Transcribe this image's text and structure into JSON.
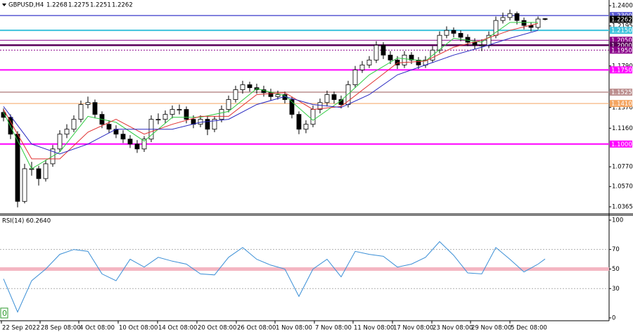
{
  "chart_data": [
    {
      "type": "candlestick",
      "title": "GBPUSD,H4",
      "x": [
        0,
        1,
        2,
        3,
        4,
        5,
        6,
        7,
        8,
        9,
        10,
        11,
        12,
        13,
        14,
        15,
        16,
        17,
        18,
        19,
        20,
        21,
        22,
        23,
        24,
        25,
        26,
        27,
        28,
        29,
        30,
        31,
        32,
        33,
        34,
        35,
        36,
        37,
        38,
        39,
        40,
        41,
        42,
        43,
        44,
        45,
        46,
        47,
        48,
        49,
        50,
        51,
        52,
        53,
        54,
        55,
        56,
        57,
        58,
        59,
        60,
        61,
        62,
        63,
        64,
        65,
        66,
        67,
        68,
        69,
        70,
        71,
        72,
        73,
        74,
        75,
        76,
        77
      ],
      "open": [
        1.132,
        1.127,
        1.11,
        1.042,
        1.075,
        1.075,
        1.065,
        1.08,
        1.095,
        1.11,
        1.115,
        1.125,
        1.14,
        1.142,
        1.13,
        1.12,
        1.115,
        1.11,
        1.105,
        1.1,
        1.095,
        1.105,
        1.125,
        1.125,
        1.13,
        1.135,
        1.135,
        1.125,
        1.12,
        1.125,
        1.115,
        1.125,
        1.135,
        1.145,
        1.155,
        1.16,
        1.157,
        1.155,
        1.152,
        1.148,
        1.15,
        1.145,
        1.13,
        1.115,
        1.12,
        1.135,
        1.142,
        1.15,
        1.145,
        1.14,
        1.16,
        1.175,
        1.18,
        1.185,
        1.2,
        1.19,
        1.185,
        1.18,
        1.19,
        1.185,
        1.18,
        1.185,
        1.195,
        1.21,
        1.215,
        1.212,
        1.208,
        1.203,
        1.2,
        1.2,
        1.21,
        1.225,
        1.228,
        1.232,
        1.225,
        1.22,
        1.218,
        1.2268
      ],
      "high": [
        1.136,
        1.13,
        1.113,
        1.08,
        1.082,
        1.078,
        1.084,
        1.099,
        1.114,
        1.12,
        1.129,
        1.144,
        1.148,
        1.145,
        1.133,
        1.124,
        1.119,
        1.114,
        1.109,
        1.104,
        1.108,
        1.129,
        1.131,
        1.134,
        1.139,
        1.14,
        1.138,
        1.129,
        1.129,
        1.128,
        1.128,
        1.139,
        1.149,
        1.159,
        1.164,
        1.163,
        1.161,
        1.159,
        1.156,
        1.154,
        1.153,
        1.148,
        1.133,
        1.124,
        1.139,
        1.146,
        1.154,
        1.153,
        1.149,
        1.164,
        1.179,
        1.184,
        1.189,
        1.204,
        1.203,
        1.194,
        1.189,
        1.194,
        1.193,
        1.188,
        1.189,
        1.199,
        1.214,
        1.219,
        1.218,
        1.215,
        1.211,
        1.207,
        1.206,
        1.214,
        1.229,
        1.233,
        1.236,
        1.234,
        1.228,
        1.223,
        1.229,
        1.2275
      ],
      "low": [
        1.123,
        1.105,
        1.036,
        1.04,
        1.068,
        1.058,
        1.062,
        1.077,
        1.092,
        1.106,
        1.112,
        1.122,
        1.136,
        1.126,
        1.116,
        1.111,
        1.106,
        1.101,
        1.096,
        1.091,
        1.092,
        1.102,
        1.12,
        1.121,
        1.126,
        1.13,
        1.121,
        1.116,
        1.117,
        1.109,
        1.112,
        1.122,
        1.132,
        1.142,
        1.151,
        1.153,
        1.151,
        1.148,
        1.144,
        1.145,
        1.141,
        1.126,
        1.11,
        1.111,
        1.117,
        1.131,
        1.138,
        1.141,
        1.136,
        1.137,
        1.157,
        1.172,
        1.177,
        1.182,
        1.186,
        1.181,
        1.176,
        1.177,
        1.181,
        1.176,
        1.177,
        1.182,
        1.192,
        1.207,
        1.208,
        1.204,
        1.199,
        1.196,
        1.194,
        1.197,
        1.207,
        1.222,
        1.225,
        1.221,
        1.216,
        1.214,
        1.216,
        1.2251
      ],
      "close": [
        1.127,
        1.11,
        1.042,
        1.075,
        1.075,
        1.065,
        1.08,
        1.095,
        1.11,
        1.115,
        1.125,
        1.14,
        1.142,
        1.13,
        1.12,
        1.115,
        1.11,
        1.105,
        1.1,
        1.095,
        1.105,
        1.125,
        1.125,
        1.13,
        1.135,
        1.135,
        1.125,
        1.12,
        1.125,
        1.115,
        1.125,
        1.135,
        1.145,
        1.155,
        1.16,
        1.157,
        1.155,
        1.152,
        1.148,
        1.15,
        1.145,
        1.13,
        1.115,
        1.12,
        1.135,
        1.142,
        1.15,
        1.145,
        1.14,
        1.16,
        1.175,
        1.18,
        1.185,
        1.2,
        1.19,
        1.185,
        1.18,
        1.19,
        1.185,
        1.18,
        1.185,
        1.195,
        1.21,
        1.215,
        1.212,
        1.208,
        1.203,
        1.2,
        1.2,
        1.21,
        1.225,
        1.228,
        1.232,
        1.225,
        1.22,
        1.218,
        1.2265,
        1.2262
      ],
      "bull_color": "#ffffff",
      "bear_color": "#000000",
      "series": [
        {
          "color": "#2ecc40",
          "x": [
            0,
            4,
            8,
            12,
            16,
            20,
            24,
            28,
            32,
            36,
            40,
            44,
            48,
            52,
            56,
            60,
            64,
            68,
            72,
            76
          ],
          "values": [
            1.132,
            1.075,
            1.092,
            1.128,
            1.122,
            1.103,
            1.127,
            1.127,
            1.133,
            1.156,
            1.149,
            1.124,
            1.144,
            1.17,
            1.187,
            1.184,
            1.207,
            1.203,
            1.223,
            1.223
          ]
        },
        {
          "color": "#e03030",
          "x": [
            0,
            4,
            8,
            12,
            16,
            20,
            24,
            28,
            32,
            36,
            40,
            44,
            48,
            52,
            56,
            60,
            64,
            68,
            72,
            76
          ],
          "values": [
            1.135,
            1.085,
            1.085,
            1.112,
            1.125,
            1.11,
            1.12,
            1.128,
            1.128,
            1.15,
            1.152,
            1.135,
            1.138,
            1.16,
            1.182,
            1.184,
            1.198,
            1.205,
            1.215,
            1.222
          ]
        },
        {
          "color": "#2828c0",
          "x": [
            0,
            4,
            8,
            12,
            16,
            20,
            24,
            28,
            32,
            36,
            40,
            44,
            48,
            52,
            56,
            60,
            64,
            68,
            72,
            76
          ],
          "values": [
            1.138,
            1.1,
            1.09,
            1.1,
            1.115,
            1.115,
            1.115,
            1.122,
            1.125,
            1.14,
            1.148,
            1.14,
            1.137,
            1.15,
            1.17,
            1.18,
            1.19,
            1.198,
            1.207,
            1.215
          ]
        }
      ],
      "levels": [
        {
          "value": 1.23,
          "label": "1.2300",
          "color": "#5a5ad2",
          "style": "solid",
          "width": 1.5
        },
        {
          "value": 1.215,
          "label": "1.2150",
          "color": "#3ec3dc",
          "style": "solid",
          "width": 2
        },
        {
          "value": 1.205,
          "label": "1.2050",
          "color": "#8b008b",
          "style": "solid",
          "width": 1
        },
        {
          "value": 1.2,
          "label": "1.2000",
          "color": "#5a005a",
          "style": "solid",
          "width": 2.5
        },
        {
          "value": 1.195,
          "label": "1.1950",
          "color": "#8b008b",
          "style": "dotted",
          "width": 1
        },
        {
          "value": 1.175,
          "label": "1.1750",
          "color": "#ff00ff",
          "style": "solid",
          "width": 2
        },
        {
          "value": 1.1525,
          "label": "1.1525",
          "color": "#bc8f8f",
          "style": "solid",
          "width": 1.5
        },
        {
          "value": 1.141,
          "label": "1.1410",
          "color": "#f4a460",
          "style": "solid",
          "width": 1
        },
        {
          "value": 1.1,
          "label": "1.1000",
          "color": "#ff00ff",
          "style": "solid",
          "width": 2
        }
      ],
      "xlim": [
        -0.5,
        86.1
      ],
      "ylim": [
        1.0301,
        1.2443
      ],
      "yticks": [
        {
          "value": 1.24,
          "label": "1.2400"
        },
        {
          "value": 1.2195,
          "label": "1.2195"
        },
        {
          "value": 1.179,
          "label": "1.1790"
        },
        {
          "value": 1.137,
          "label": "1.1370"
        },
        {
          "value": 1.116,
          "label": "1.1160"
        },
        {
          "value": 1.077,
          "label": "1.0770"
        },
        {
          "value": 1.057,
          "label": "1.0570"
        },
        {
          "value": 1.0365,
          "label": "1.0365"
        }
      ]
    },
    {
      "type": "line",
      "title": "RSI(14) 60.2640",
      "color": "#3b8fd6",
      "x": [
        0,
        2,
        4,
        6,
        8,
        10,
        12,
        14,
        16,
        18,
        20,
        22,
        24,
        26,
        28,
        30,
        32,
        34,
        36,
        38,
        40,
        42,
        44,
        46,
        48,
        50,
        52,
        54,
        56,
        58,
        60,
        62,
        64,
        66,
        68,
        70,
        72,
        74,
        76,
        77
      ],
      "values": [
        40,
        6,
        38,
        50,
        65,
        70,
        68,
        45,
        38,
        60,
        52,
        62,
        58,
        55,
        45,
        44,
        62,
        72,
        60,
        54,
        50,
        22,
        50,
        60,
        42,
        68,
        65,
        63,
        52,
        55,
        62,
        78,
        64,
        46,
        45,
        72,
        60,
        47,
        55,
        60.264
      ],
      "levels": [
        {
          "value": 70,
          "color": "#b0b0b0",
          "style": "dotted",
          "width": 1
        },
        {
          "value": 50,
          "color": "#f4b6c2",
          "style": "solid",
          "width": 5
        },
        {
          "value": 30,
          "color": "#b0b0b0",
          "style": "dotted",
          "width": 1
        }
      ],
      "corner_label": "0",
      "xlim": [
        -0.5,
        86.1
      ],
      "ylim": [
        -2.2,
        104.3
      ],
      "yticks": [
        100,
        70,
        50,
        30,
        0
      ],
      "xticks": [
        {
          "value": -0.3,
          "label": "22 Sep 2022"
        },
        {
          "value": 5.2,
          "label": "28 Sep 08:00"
        },
        {
          "value": 10.7,
          "label": "4 Oct 08:00"
        },
        {
          "value": 16.3,
          "label": "10 Oct 08:00"
        },
        {
          "value": 21.9,
          "label": "14 Oct 08:00"
        },
        {
          "value": 27.5,
          "label": "20 Oct 08:00"
        },
        {
          "value": 33.1,
          "label": "26 Oct 08:00"
        },
        {
          "value": 38.6,
          "label": "1 Nov 08:00"
        },
        {
          "value": 44.2,
          "label": "7 Nov 08:00"
        },
        {
          "value": 49.7,
          "label": "11 Nov 08:00"
        },
        {
          "value": 55.3,
          "label": "17 Nov 08:00"
        },
        {
          "value": 60.9,
          "label": "23 Nov 08:00"
        },
        {
          "value": 66.4,
          "label": "29 Nov 08:00"
        },
        {
          "value": 72,
          "label": "5 Dec 08:00"
        }
      ]
    }
  ]
}
